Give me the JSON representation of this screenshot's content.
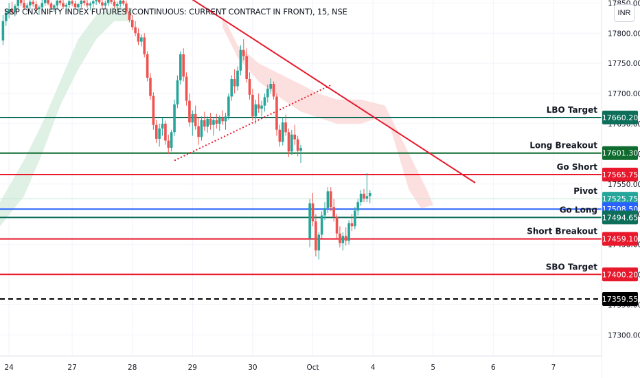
{
  "chart_data": {
    "type": "candlestick",
    "title": "S&P CNX NIFTY INDEX FUTURES (CONTINUOUS: CURRENT CONTRACT IN FRONT), 15, NSE",
    "currency": "INR",
    "ylim": [
      17265,
      17855
    ],
    "xlim": [
      0,
      10
    ],
    "y_ticks": [
      17300,
      17350,
      17400,
      17450,
      17500,
      17550,
      17600,
      17650,
      17700,
      17750,
      17800,
      17850
    ],
    "x_ticks": [
      {
        "label": "24",
        "x": 0.15
      },
      {
        "label": "27",
        "x": 1.2
      },
      {
        "label": "28",
        "x": 2.2
      },
      {
        "label": "29",
        "x": 3.2
      },
      {
        "label": "30",
        "x": 4.2
      },
      {
        "label": "Oct",
        "x": 5.2
      },
      {
        "label": "4",
        "x": 6.2
      },
      {
        "label": "5",
        "x": 7.2
      },
      {
        "label": "6",
        "x": 8.2
      },
      {
        "label": "7",
        "x": 9.2
      }
    ],
    "levels": [
      {
        "name": "LBO Target",
        "value": 17660.2,
        "label": "17660.20",
        "color": "#0d6e5a",
        "badge": "#0d6e5a",
        "style": "solid"
      },
      {
        "name": "Long Breakout",
        "value": 17601.3,
        "label": "17601.30",
        "color": "#0f6b2e",
        "badge": "#0f6b2e",
        "style": "solid"
      },
      {
        "name": "Go Short",
        "value": 17565.75,
        "label": "17565.75",
        "color": "#e8192c",
        "badge": "#e8192c",
        "style": "solid"
      },
      {
        "name": "Pivot",
        "value": 17525.75,
        "label": "17525.75",
        "color": "#c8e6d6",
        "badge": "#26a69a",
        "style": "thin"
      },
      {
        "name": "",
        "value": 17508.5,
        "label": "17508.50",
        "color": "#2962ff",
        "badge": "#2962ff",
        "style": "solid"
      },
      {
        "name": "Go Long",
        "value": 17494.65,
        "label": "17494.65",
        "color": "#0d6e5a",
        "badge": "#0d6e5a",
        "style": "solid"
      },
      {
        "name": "Short Breakout",
        "value": 17459.1,
        "label": "17459.10",
        "color": "#e8192c",
        "badge": "#e8192c",
        "style": "solid"
      },
      {
        "name": "SBO Target",
        "value": 17400.2,
        "label": "17400.20",
        "color": "#e8192c",
        "badge": "#e8192c",
        "style": "solid"
      },
      {
        "name": "",
        "value": 17359.55,
        "label": "17359.55",
        "color": "#000000",
        "badge": "#000000",
        "style": "dashed"
      }
    ],
    "trendlines": [
      {
        "x1": 2.7,
        "y1": 17888,
        "x2": 7.9,
        "y2": 17552,
        "color": "#e8192c",
        "style": "solid"
      },
      {
        "x1": 2.9,
        "y1": 17589,
        "x2": 5.5,
        "y2": 17714,
        "color": "#e8192c",
        "style": "dotted"
      }
    ],
    "cloud_green": [
      [
        0.0,
        17520
      ],
      [
        0.4,
        17590
      ],
      [
        0.7,
        17650
      ],
      [
        1.0,
        17720
      ],
      [
        1.3,
        17790
      ],
      [
        1.6,
        17830
      ],
      [
        1.9,
        17845
      ],
      [
        2.2,
        17840
      ],
      [
        2.2,
        17820
      ],
      [
        1.9,
        17820
      ],
      [
        1.6,
        17790
      ],
      [
        1.3,
        17740
      ],
      [
        1.0,
        17680
      ],
      [
        0.7,
        17600
      ],
      [
        0.4,
        17530
      ],
      [
        0.0,
        17480
      ]
    ],
    "cloud_red": [
      [
        3.7,
        17830
      ],
      [
        3.95,
        17780
      ],
      [
        4.3,
        17750
      ],
      [
        4.7,
        17730
      ],
      [
        5.0,
        17715
      ],
      [
        5.3,
        17700
      ],
      [
        5.6,
        17690
      ],
      [
        6.0,
        17690
      ],
      [
        6.4,
        17680
      ],
      [
        6.8,
        17600
      ],
      [
        7.1,
        17540
      ],
      [
        7.2,
        17515
      ],
      [
        7.0,
        17510
      ],
      [
        6.8,
        17540
      ],
      [
        6.5,
        17640
      ],
      [
        6.3,
        17660
      ],
      [
        6.0,
        17650
      ],
      [
        5.6,
        17650
      ],
      [
        5.3,
        17660
      ],
      [
        5.0,
        17670
      ],
      [
        4.7,
        17690
      ],
      [
        4.3,
        17720
      ],
      [
        3.95,
        17760
      ],
      [
        3.7,
        17810
      ]
    ],
    "candles": [
      [
        0.05,
        17788,
        17830,
        17780,
        17820
      ],
      [
        0.1,
        17820,
        17840,
        17812,
        17834
      ],
      [
        0.15,
        17834,
        17850,
        17825,
        17840
      ],
      [
        0.2,
        17840,
        17852,
        17830,
        17835
      ],
      [
        0.25,
        17835,
        17848,
        17828,
        17845
      ],
      [
        0.3,
        17845,
        17860,
        17840,
        17855
      ],
      [
        0.35,
        17855,
        17862,
        17845,
        17850
      ],
      [
        0.4,
        17850,
        17858,
        17838,
        17842
      ],
      [
        0.45,
        17842,
        17850,
        17835,
        17846
      ],
      [
        0.5,
        17846,
        17855,
        17840,
        17852
      ],
      [
        0.55,
        17852,
        17860,
        17844,
        17848
      ],
      [
        0.6,
        17848,
        17854,
        17836,
        17840
      ],
      [
        0.65,
        17840,
        17846,
        17830,
        17843
      ],
      [
        0.7,
        17843,
        17855,
        17838,
        17850
      ],
      [
        0.75,
        17850,
        17862,
        17845,
        17856
      ],
      [
        0.8,
        17856,
        17860,
        17846,
        17849
      ],
      [
        0.85,
        17849,
        17852,
        17838,
        17842
      ],
      [
        0.9,
        17842,
        17848,
        17835,
        17846
      ],
      [
        0.95,
        17846,
        17858,
        17840,
        17854
      ],
      [
        1.0,
        17854,
        17862,
        17846,
        17850
      ],
      [
        1.05,
        17850,
        17856,
        17840,
        17844
      ],
      [
        1.1,
        17844,
        17850,
        17836,
        17847
      ],
      [
        1.15,
        17847,
        17858,
        17842,
        17853
      ],
      [
        1.2,
        17853,
        17860,
        17845,
        17849
      ],
      [
        1.25,
        17849,
        17854,
        17840,
        17843
      ],
      [
        1.3,
        17843,
        17850,
        17836,
        17848
      ],
      [
        1.35,
        17848,
        17858,
        17842,
        17854
      ],
      [
        1.4,
        17854,
        17862,
        17846,
        17850
      ],
      [
        1.45,
        17850,
        17856,
        17842,
        17846
      ],
      [
        1.5,
        17846,
        17852,
        17838,
        17849
      ],
      [
        1.55,
        17849,
        17858,
        17843,
        17853
      ],
      [
        1.6,
        17853,
        17862,
        17847,
        17858
      ],
      [
        1.65,
        17858,
        17864,
        17848,
        17851
      ],
      [
        1.7,
        17851,
        17856,
        17842,
        17846
      ],
      [
        1.75,
        17846,
        17854,
        17840,
        17850
      ],
      [
        1.8,
        17850,
        17860,
        17845,
        17856
      ],
      [
        1.85,
        17856,
        17863,
        17848,
        17852
      ],
      [
        1.9,
        17852,
        17858,
        17842,
        17845
      ],
      [
        1.95,
        17845,
        17852,
        17838,
        17848
      ],
      [
        2.0,
        17848,
        17858,
        17843,
        17854
      ],
      [
        2.05,
        17854,
        17862,
        17846,
        17849
      ],
      [
        2.1,
        17849,
        17854,
        17832,
        17836
      ],
      [
        2.15,
        17836,
        17842,
        17818,
        17822
      ],
      [
        2.2,
        17822,
        17830,
        17805,
        17810
      ],
      [
        2.25,
        17810,
        17820,
        17795,
        17800
      ],
      [
        2.3,
        17800,
        17808,
        17780,
        17786
      ],
      [
        2.35,
        17786,
        17798,
        17778,
        17793
      ],
      [
        2.4,
        17793,
        17800,
        17760,
        17765
      ],
      [
        2.45,
        17765,
        17770,
        17720,
        17726
      ],
      [
        2.5,
        17726,
        17734,
        17690,
        17696
      ],
      [
        2.55,
        17696,
        17702,
        17640,
        17648
      ],
      [
        2.6,
        17648,
        17656,
        17618,
        17625
      ],
      [
        2.65,
        17625,
        17650,
        17612,
        17642
      ],
      [
        2.7,
        17642,
        17660,
        17630,
        17650
      ],
      [
        2.75,
        17650,
        17655,
        17615,
        17622
      ],
      [
        2.8,
        17622,
        17632,
        17600,
        17610
      ],
      [
        2.85,
        17610,
        17640,
        17604,
        17636
      ],
      [
        2.9,
        17636,
        17690,
        17630,
        17682
      ],
      [
        2.95,
        17682,
        17730,
        17676,
        17722
      ],
      [
        3.0,
        17722,
        17770,
        17715,
        17765
      ],
      [
        3.05,
        17765,
        17775,
        17720,
        17728
      ],
      [
        3.1,
        17728,
        17735,
        17680,
        17688
      ],
      [
        3.15,
        17688,
        17700,
        17645,
        17652
      ],
      [
        3.2,
        17652,
        17672,
        17630,
        17666
      ],
      [
        3.25,
        17666,
        17680,
        17640,
        17646
      ],
      [
        3.3,
        17646,
        17660,
        17615,
        17628
      ],
      [
        3.35,
        17628,
        17662,
        17622,
        17656
      ],
      [
        3.4,
        17656,
        17670,
        17638,
        17645
      ],
      [
        3.45,
        17645,
        17662,
        17635,
        17658
      ],
      [
        3.5,
        17658,
        17668,
        17640,
        17648
      ],
      [
        3.55,
        17648,
        17660,
        17630,
        17656
      ],
      [
        3.6,
        17656,
        17666,
        17642,
        17650
      ],
      [
        3.65,
        17650,
        17664,
        17638,
        17660
      ],
      [
        3.7,
        17660,
        17672,
        17648,
        17654
      ],
      [
        3.75,
        17654,
        17668,
        17640,
        17662
      ],
      [
        3.8,
        17662,
        17700,
        17656,
        17695
      ],
      [
        3.85,
        17695,
        17730,
        17688,
        17724
      ],
      [
        3.9,
        17724,
        17740,
        17700,
        17712
      ],
      [
        3.95,
        17712,
        17745,
        17705,
        17738
      ],
      [
        4.0,
        17738,
        17780,
        17730,
        17772
      ],
      [
        4.05,
        17772,
        17790,
        17755,
        17762
      ],
      [
        4.1,
        17762,
        17775,
        17718,
        17724
      ],
      [
        4.15,
        17724,
        17735,
        17690,
        17698
      ],
      [
        4.2,
        17698,
        17708,
        17655,
        17662
      ],
      [
        4.25,
        17662,
        17690,
        17650,
        17682
      ],
      [
        4.3,
        17682,
        17700,
        17668,
        17675
      ],
      [
        4.35,
        17675,
        17688,
        17662,
        17680
      ],
      [
        4.4,
        17680,
        17700,
        17670,
        17694
      ],
      [
        4.45,
        17694,
        17715,
        17685,
        17708
      ],
      [
        4.5,
        17708,
        17725,
        17700,
        17716
      ],
      [
        4.55,
        17716,
        17720,
        17690,
        17695
      ],
      [
        4.6,
        17695,
        17700,
        17630,
        17640
      ],
      [
        4.65,
        17640,
        17648,
        17612,
        17620
      ],
      [
        4.7,
        17620,
        17660,
        17614,
        17652
      ],
      [
        4.75,
        17652,
        17665,
        17630,
        17636
      ],
      [
        4.8,
        17636,
        17642,
        17595,
        17604
      ],
      [
        4.85,
        17604,
        17640,
        17598,
        17632
      ],
      [
        4.9,
        17632,
        17648,
        17615,
        17624
      ],
      [
        4.95,
        17624,
        17630,
        17596,
        17605
      ],
      [
        5.0,
        17605,
        17615,
        17585,
        17610
      ],
      [
        5.15,
        17460,
        17525,
        17445,
        17518
      ],
      [
        5.2,
        17518,
        17535,
        17480,
        17488
      ],
      [
        5.25,
        17488,
        17500,
        17430,
        17440
      ],
      [
        5.3,
        17440,
        17470,
        17425,
        17466
      ],
      [
        5.35,
        17466,
        17505,
        17460,
        17498
      ],
      [
        5.4,
        17498,
        17520,
        17490,
        17510
      ],
      [
        5.45,
        17510,
        17545,
        17502,
        17538
      ],
      [
        5.5,
        17538,
        17545,
        17505,
        17512
      ],
      [
        5.55,
        17512,
        17525,
        17488,
        17495
      ],
      [
        5.6,
        17495,
        17500,
        17460,
        17468
      ],
      [
        5.65,
        17468,
        17480,
        17445,
        17452
      ],
      [
        5.7,
        17452,
        17470,
        17440,
        17464
      ],
      [
        5.75,
        17464,
        17478,
        17448,
        17456
      ],
      [
        5.8,
        17456,
        17490,
        17450,
        17485
      ],
      [
        5.85,
        17485,
        17500,
        17472,
        17480
      ],
      [
        5.9,
        17480,
        17512,
        17475,
        17506
      ],
      [
        5.95,
        17506,
        17525,
        17498,
        17520
      ],
      [
        6.0,
        17520,
        17540,
        17514,
        17534
      ],
      [
        6.05,
        17534,
        17542,
        17520,
        17526
      ],
      [
        6.1,
        17526,
        17568,
        17520,
        17530
      ],
      [
        6.15,
        17530,
        17540,
        17518,
        17535
      ]
    ]
  }
}
